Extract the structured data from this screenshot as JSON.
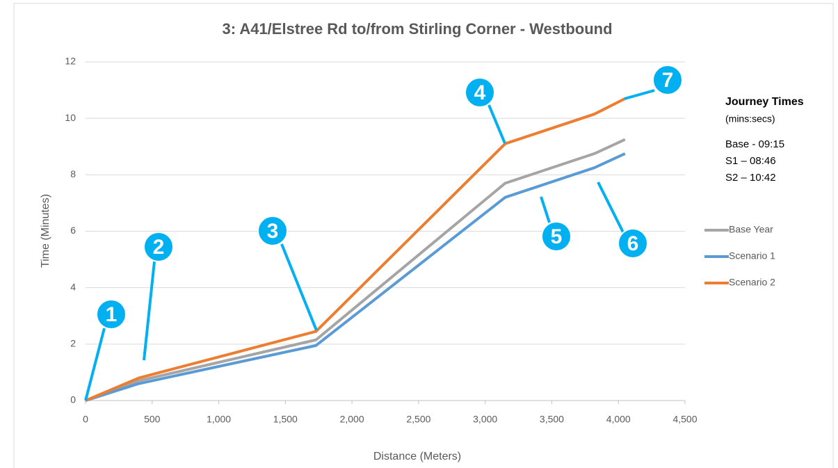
{
  "chart_data": {
    "type": "line",
    "title": "3: A41/Elstree Rd to/from Stirling Corner - Westbound",
    "xlabel": "Distance (Meters)",
    "ylabel": "Time (Minutes)",
    "x": [
      0,
      400,
      1730,
      3150,
      3820,
      4050
    ],
    "series": [
      {
        "name": "Base Year",
        "color": "#a5a5a5",
        "values": [
          0,
          0.7,
          2.15,
          7.7,
          8.75,
          9.25
        ]
      },
      {
        "name": "Scenario 1",
        "color": "#5b9bd5",
        "values": [
          0,
          0.6,
          1.95,
          7.2,
          8.25,
          8.75
        ]
      },
      {
        "name": "Scenario 2",
        "color": "#ed7d31",
        "values": [
          0,
          0.8,
          2.45,
          9.1,
          10.15,
          10.7
        ]
      }
    ],
    "xlim": [
      0,
      4500
    ],
    "xticks": [
      0,
      500,
      {
        "value": 1000,
        "label": "1,000"
      },
      {
        "value": 1500,
        "label": "1,500"
      },
      {
        "value": 2000,
        "label": "2,000"
      },
      {
        "value": 2500,
        "label": "2,500"
      },
      {
        "value": 3000,
        "label": "3,000"
      },
      {
        "value": 3500,
        "label": "3,500"
      },
      {
        "value": 4000,
        "label": "4,000"
      },
      {
        "value": 4500,
        "label": "4,500"
      }
    ],
    "ylim": [
      0,
      12
    ],
    "yticks": [
      0,
      2,
      4,
      6,
      8,
      10,
      12
    ],
    "grid": true,
    "legend": "right",
    "annotations": [
      "1",
      "2",
      "3",
      "4",
      "5",
      "6",
      "7"
    ],
    "annotation_color": "#00b0f0",
    "notes": {
      "heading": "Journey Times",
      "subheading": "(mins:secs)",
      "lines": [
        "Base - 09:15",
        "S1 – 08:46",
        "S2 – 10:42"
      ]
    }
  }
}
